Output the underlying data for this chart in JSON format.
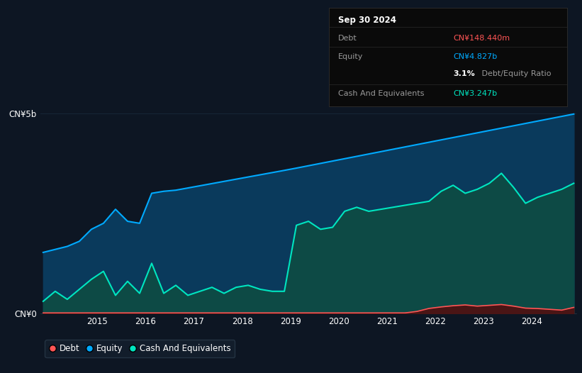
{
  "bg_color": "#0d1623",
  "plot_bg_color": "#0d1623",
  "equity_color": "#00aaff",
  "equity_fill_color": "#0a3a5c",
  "cash_color": "#00e5c0",
  "cash_fill_color": "#0d4a45",
  "debt_color": "#ff5555",
  "debt_fill_color": "#4a1515",
  "grid_color": "#1a2e42",
  "text_color": "#ffffff",
  "dim_text_color": "#999999",
  "tooltip_bg": "#0a0a0a",
  "tooltip_title": "Sep 30 2024",
  "tooltip_debt_label": "Debt",
  "tooltip_debt_value": "CN¥148.440m",
  "tooltip_debt_color": "#ff5555",
  "tooltip_equity_label": "Equity",
  "tooltip_equity_value": "CN¥4.827b",
  "tooltip_equity_color": "#00aaff",
  "tooltip_ratio": "3.1%",
  "tooltip_ratio_suffix": " Debt/Equity Ratio",
  "tooltip_cash_label": "Cash And Equivalents",
  "tooltip_cash_value": "CN¥3.247b",
  "tooltip_cash_color": "#00e5c0",
  "legend_labels": [
    "Debt",
    "Equity",
    "Cash And Equivalents"
  ],
  "ytick_labels": [
    "CN¥0",
    "CN¥5b"
  ],
  "ytick_values": [
    0,
    5000000000
  ],
  "ylim_max": 5500000000,
  "year_ticks": [
    2015,
    2016,
    2017,
    2018,
    2019,
    2020,
    2021,
    2022,
    2023,
    2024
  ]
}
